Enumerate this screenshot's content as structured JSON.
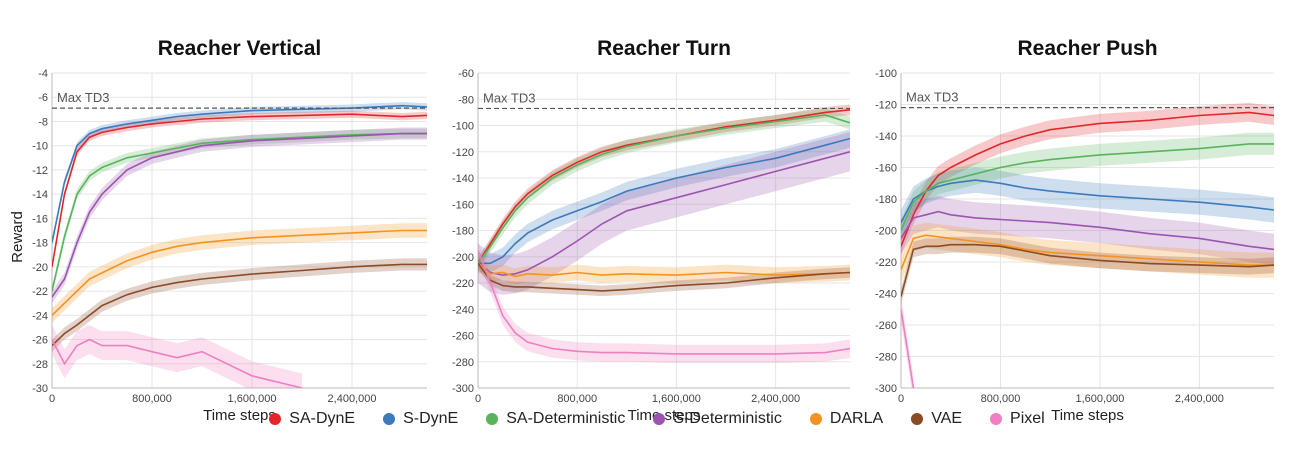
{
  "figure": {
    "ylabel": "Reward",
    "xlabel": "Time steps",
    "reference_label": "Max TD3"
  },
  "legend": [
    {
      "name": "SA-DynE",
      "color": "#e2272b"
    },
    {
      "name": "S-DynE",
      "color": "#3b7bbd"
    },
    {
      "name": "SA-Deterministic",
      "color": "#58b45a"
    },
    {
      "name": "S-Deterministic",
      "color": "#9b55b0"
    },
    {
      "name": "DARLA",
      "color": "#f59321"
    },
    {
      "name": "VAE",
      "color": "#8c4a26"
    },
    {
      "name": "Pixel",
      "color": "#ef7fc0"
    }
  ],
  "chart_data": [
    {
      "type": "line",
      "title": "Reacher Vertical",
      "xlabel": "Time steps",
      "ylabel": "Reward",
      "xlim": [
        0,
        3000000
      ],
      "ylim": [
        -30,
        -4
      ],
      "xticks": [
        0,
        800000,
        1600000,
        2400000
      ],
      "xtick_labels": [
        "0",
        "800,000",
        "1,600,000",
        "2,400,000"
      ],
      "yticks": [
        -30,
        -28,
        -26,
        -24,
        -22,
        -20,
        -18,
        -16,
        -14,
        -12,
        -10,
        -8,
        -6,
        -4
      ],
      "reference": {
        "label": "Max TD3",
        "y": -6.9
      },
      "x": [
        0,
        100000,
        200000,
        300000,
        400000,
        600000,
        800000,
        1000000,
        1200000,
        1600000,
        2000000,
        2400000,
        2800000,
        3000000
      ],
      "series": [
        {
          "name": "SA-DynE",
          "color": "#e2272b",
          "values": [
            -20,
            -14,
            -10.5,
            -9.3,
            -8.9,
            -8.5,
            -8.2,
            -8.0,
            -7.8,
            -7.6,
            -7.5,
            -7.4,
            -7.6,
            -7.5
          ],
          "band": 0.3
        },
        {
          "name": "S-DynE",
          "color": "#3b7bbd",
          "values": [
            -18,
            -13,
            -10,
            -9,
            -8.6,
            -8.2,
            -7.9,
            -7.6,
            -7.4,
            -7.1,
            -7.0,
            -6.9,
            -6.7,
            -6.8
          ],
          "band": 0.3
        },
        {
          "name": "SA-Deterministic",
          "color": "#58b45a",
          "values": [
            -22,
            -17.5,
            -14,
            -12.5,
            -11.8,
            -11,
            -10.6,
            -10.2,
            -9.8,
            -9.5,
            -9.3,
            -9.1,
            -9.0,
            -9.0
          ],
          "band": 0.4
        },
        {
          "name": "S-Deterministic",
          "color": "#9b55b0",
          "values": [
            -22.5,
            -21,
            -18,
            -15.5,
            -14,
            -12,
            -11,
            -10.5,
            -10,
            -9.6,
            -9.4,
            -9.2,
            -9.0,
            -9.0
          ],
          "band": 0.5
        },
        {
          "name": "DARLA",
          "color": "#f59321",
          "values": [
            -24,
            -23,
            -22,
            -21,
            -20.5,
            -19.5,
            -18.8,
            -18.3,
            -18,
            -17.6,
            -17.4,
            -17.2,
            -17.0,
            -17.0
          ],
          "band": 0.6
        },
        {
          "name": "VAE",
          "color": "#8c4a26",
          "values": [
            -26.5,
            -25.5,
            -24.8,
            -24,
            -23.2,
            -22.3,
            -21.7,
            -21.3,
            -21,
            -20.6,
            -20.3,
            -20.0,
            -19.8,
            -19.8
          ],
          "band": 0.5
        },
        {
          "name": "Pixel",
          "color": "#ef7fc0",
          "values": [
            -26,
            -28,
            -26.5,
            -26,
            -26.5,
            -26.5,
            -27,
            -27.5,
            -27,
            -29,
            -30,
            null,
            null,
            null
          ],
          "band": 1.2
        }
      ]
    },
    {
      "type": "line",
      "title": "Reacher Turn",
      "xlabel": "Time steps",
      "ylabel": "",
      "xlim": [
        0,
        3000000
      ],
      "ylim": [
        -300,
        -60
      ],
      "xticks": [
        0,
        800000,
        1600000,
        2400000
      ],
      "xtick_labels": [
        "0",
        "800,000",
        "1,600,000",
        "2,400,000"
      ],
      "yticks": [
        -300,
        -280,
        -260,
        -240,
        -220,
        -200,
        -180,
        -160,
        -140,
        -120,
        -100,
        -80,
        -60
      ],
      "reference": {
        "label": "Max TD3",
        "y": -87
      },
      "x": [
        0,
        100000,
        200000,
        300000,
        400000,
        600000,
        800000,
        1000000,
        1200000,
        1600000,
        2000000,
        2400000,
        2800000,
        3000000
      ],
      "series": [
        {
          "name": "SA-DynE",
          "color": "#e2272b",
          "values": [
            -205,
            -190,
            -175,
            -162,
            -152,
            -138,
            -128,
            -120,
            -115,
            -108,
            -101,
            -96,
            -90,
            -88
          ],
          "band": 4
        },
        {
          "name": "S-DynE",
          "color": "#3b7bbd",
          "values": [
            -205,
            -205,
            -200,
            -190,
            -182,
            -172,
            -165,
            -158,
            -150,
            -140,
            -132,
            -125,
            -115,
            -110
          ],
          "band": 7
        },
        {
          "name": "SA-Deterministic",
          "color": "#58b45a",
          "values": [
            -205,
            -192,
            -178,
            -165,
            -155,
            -140,
            -130,
            -122,
            -116,
            -108,
            -102,
            -97,
            -92,
            -98
          ],
          "band": 5
        },
        {
          "name": "S-Deterministic",
          "color": "#9b55b0",
          "values": [
            -205,
            -212,
            -214,
            -213,
            -210,
            -200,
            -188,
            -175,
            -165,
            -155,
            -145,
            -135,
            -125,
            -120
          ],
          "band": 15
        },
        {
          "name": "DARLA",
          "color": "#f59321",
          "values": [
            -205,
            -213,
            -212,
            -215,
            -213,
            -214,
            -212,
            -214,
            -213,
            -214,
            -212,
            -214,
            -213,
            -212
          ],
          "band": 6
        },
        {
          "name": "VAE",
          "color": "#8c4a26",
          "values": [
            -205,
            -218,
            -222,
            -223,
            -223,
            -224,
            -225,
            -226,
            -225,
            -222,
            -220,
            -216,
            -213,
            -212
          ],
          "band": 4
        },
        {
          "name": "Pixel",
          "color": "#ef7fc0",
          "values": [
            -195,
            -220,
            -245,
            -258,
            -265,
            -270,
            -272,
            -273,
            -273,
            -274,
            -274,
            -274,
            -273,
            -270
          ],
          "band": 7
        }
      ]
    },
    {
      "type": "line",
      "title": "Reacher Push",
      "xlabel": "Time steps",
      "ylabel": "",
      "xlim": [
        0,
        3000000
      ],
      "ylim": [
        -300,
        -100
      ],
      "xticks": [
        0,
        800000,
        1600000,
        2400000
      ],
      "xtick_labels": [
        "0",
        "800,000",
        "1,600,000",
        "2,400,000"
      ],
      "yticks": [
        -300,
        -280,
        -260,
        -240,
        -220,
        -200,
        -180,
        -160,
        -140,
        -120,
        -100
      ],
      "reference": {
        "label": "Max TD3",
        "y": -122
      },
      "x": [
        0,
        100000,
        200000,
        300000,
        400000,
        600000,
        800000,
        1000000,
        1200000,
        1600000,
        2000000,
        2400000,
        2800000,
        3000000
      ],
      "series": [
        {
          "name": "SA-DynE",
          "color": "#e2272b",
          "values": [
            -210,
            -190,
            -175,
            -165,
            -160,
            -152,
            -145,
            -140,
            -136,
            -132,
            -130,
            -127,
            -125,
            -127
          ],
          "band": 6
        },
        {
          "name": "S-DynE",
          "color": "#3b7bbd",
          "values": [
            -195,
            -180,
            -175,
            -172,
            -170,
            -168,
            -170,
            -173,
            -175,
            -178,
            -180,
            -182,
            -185,
            -187
          ],
          "band": 8
        },
        {
          "name": "SA-Deterministic",
          "color": "#58b45a",
          "values": [
            -200,
            -182,
            -175,
            -170,
            -168,
            -164,
            -160,
            -157,
            -155,
            -152,
            -150,
            -148,
            -145,
            -145
          ],
          "band": 7
        },
        {
          "name": "S-Deterministic",
          "color": "#9b55b0",
          "values": [
            -205,
            -192,
            -190,
            -188,
            -190,
            -192,
            -193,
            -194,
            -195,
            -198,
            -202,
            -205,
            -210,
            -212
          ],
          "band": 10
        },
        {
          "name": "DARLA",
          "color": "#f59321",
          "values": [
            -225,
            -205,
            -203,
            -204,
            -205,
            -207,
            -209,
            -212,
            -214,
            -216,
            -218,
            -220,
            -222,
            -222
          ],
          "band": 8
        },
        {
          "name": "VAE",
          "color": "#8c4a26",
          "values": [
            -242,
            -212,
            -210,
            -210,
            -209,
            -209,
            -210,
            -213,
            -216,
            -219,
            -221,
            -222,
            -223,
            -222
          ],
          "band": 5
        },
        {
          "name": "Pixel",
          "color": "#ef7fc0",
          "values": [
            -250,
            -300,
            null,
            null,
            null,
            null,
            null,
            null,
            null,
            null,
            null,
            null,
            null,
            null
          ],
          "band": 8
        }
      ]
    }
  ]
}
